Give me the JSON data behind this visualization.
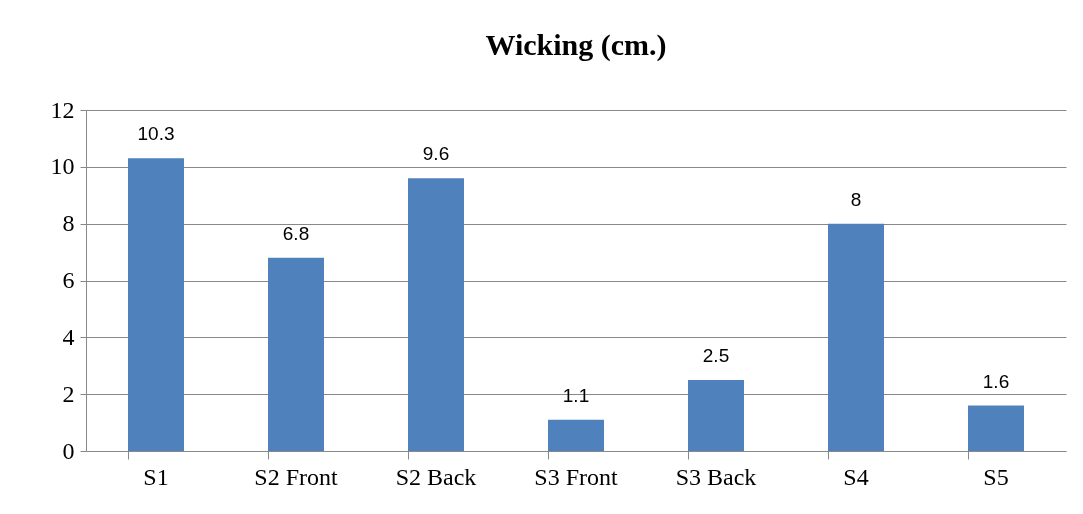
{
  "chart_data": {
    "type": "bar",
    "title": "Wicking (cm.)",
    "categories": [
      "S1",
      "S2 Front",
      "S2 Back",
      "S3 Front",
      "S3  Back",
      "S4",
      "S5"
    ],
    "values": [
      10.3,
      6.8,
      9.6,
      1.1,
      2.5,
      8,
      1.6
    ],
    "color": "#4f81bd",
    "ylim": [
      0,
      12
    ],
    "yticks": [
      0,
      2,
      4,
      6,
      8,
      10,
      12
    ],
    "grid": "y",
    "data_labels": true
  }
}
